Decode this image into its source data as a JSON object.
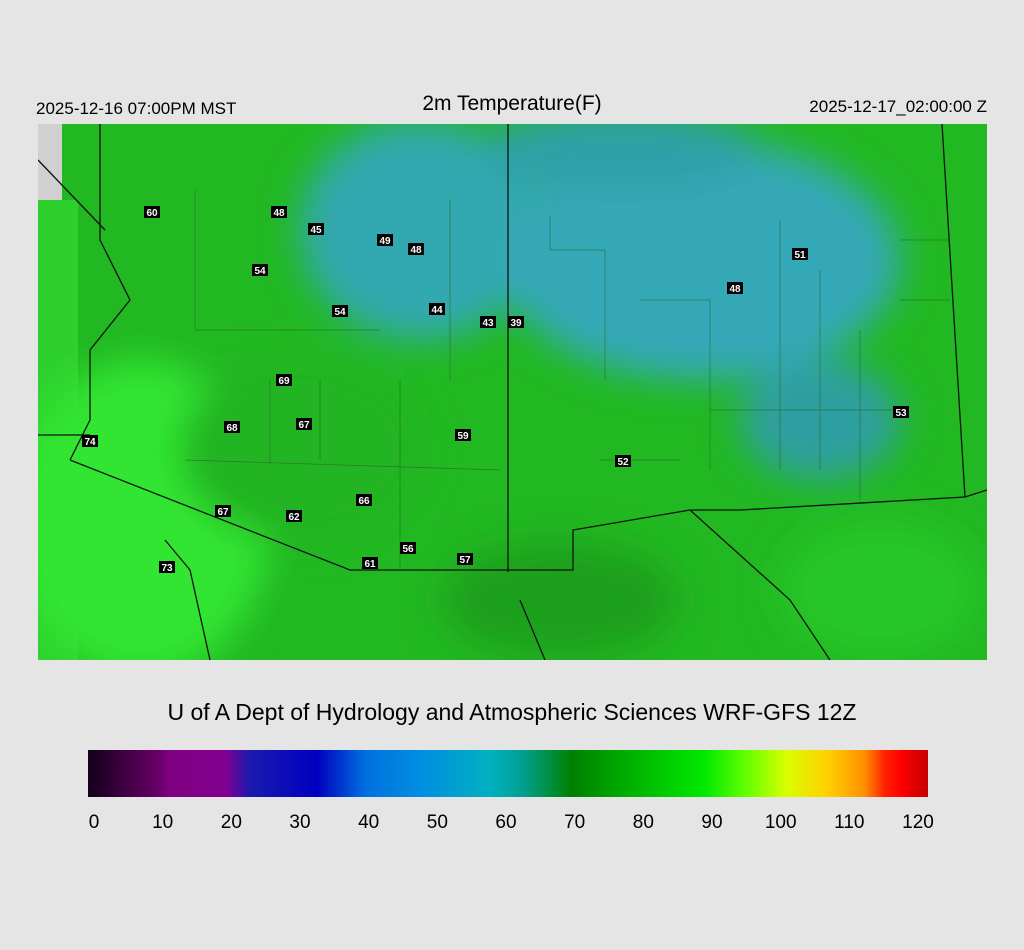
{
  "header": {
    "valid_local": "2025-12-16 07:00PM MST",
    "title": "2m Temperature(F)",
    "valid_utc": "2025-12-17_02:00:00 Z"
  },
  "stations": [
    60,
    48,
    45,
    49,
    48,
    54,
    54,
    44,
    43,
    39,
    69,
    68,
    67,
    59,
    74,
    67,
    62,
    66,
    56,
    57,
    61,
    73,
    52,
    48,
    51,
    53
  ],
  "credit": "U of A Dept of Hydrology and Atmospheric Sciences WRF-GFS 12Z",
  "colorbar": {
    "range": [
      0,
      120
    ],
    "ticks": [
      0,
      10,
      20,
      30,
      40,
      50,
      60,
      70,
      80,
      90,
      100,
      110,
      120
    ]
  }
}
